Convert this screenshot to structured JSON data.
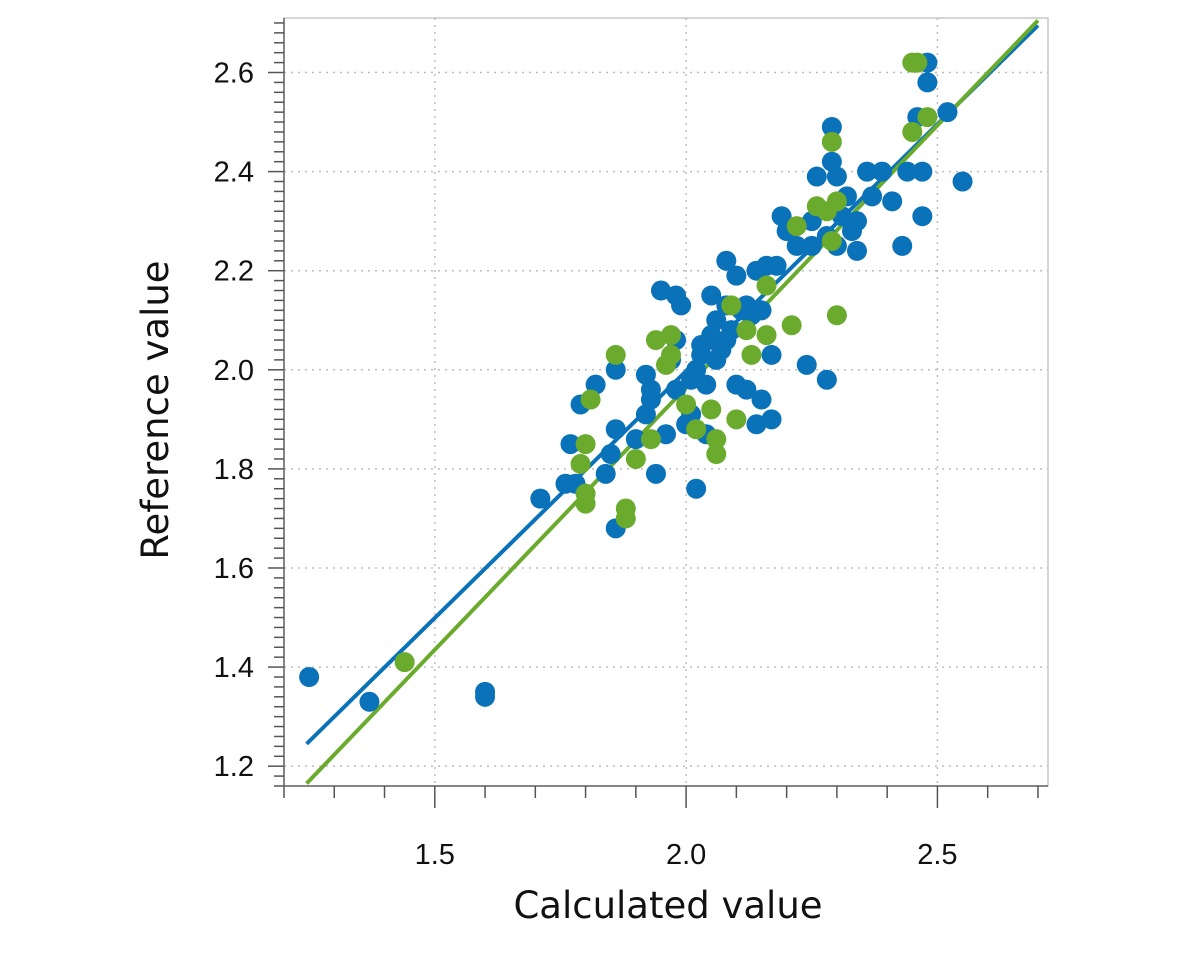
{
  "chart_data": {
    "type": "scatter",
    "title": "",
    "xlabel": "Calculated value",
    "ylabel": "Reference value",
    "xlim": [
      1.2,
      2.72
    ],
    "ylim": [
      1.16,
      2.71
    ],
    "xticks": [
      1.5,
      2.0,
      2.5
    ],
    "xtick_labels": [
      "1.5",
      "2.0",
      "2.5"
    ],
    "yticks": [
      1.2,
      1.4,
      1.6,
      1.8,
      2.0,
      2.2,
      2.4,
      2.6
    ],
    "ytick_labels": [
      "1.2",
      "1.4",
      "1.6",
      "1.8",
      "2.0",
      "2.2",
      "2.4",
      "2.6"
    ],
    "grid": true,
    "legend": "none",
    "series": [
      {
        "color": "#0a72b8",
        "points": [
          [
            1.25,
            1.38
          ],
          [
            1.37,
            1.33
          ],
          [
            1.6,
            1.35
          ],
          [
            1.6,
            1.34
          ],
          [
            1.71,
            1.74
          ],
          [
            1.76,
            1.77
          ],
          [
            1.78,
            1.77
          ],
          [
            1.77,
            1.85
          ],
          [
            1.79,
            1.93
          ],
          [
            1.82,
            1.97
          ],
          [
            1.84,
            1.79
          ],
          [
            1.86,
            1.68
          ],
          [
            1.85,
            1.83
          ],
          [
            1.86,
            1.88
          ],
          [
            1.86,
            2.0
          ],
          [
            1.9,
            1.86
          ],
          [
            1.92,
            1.99
          ],
          [
            1.93,
            1.94
          ],
          [
            1.93,
            1.96
          ],
          [
            1.92,
            1.91
          ],
          [
            1.94,
            1.79
          ],
          [
            1.95,
            2.16
          ],
          [
            1.96,
            1.87
          ],
          [
            1.97,
            2.02
          ],
          [
            1.98,
            1.96
          ],
          [
            1.98,
            2.06
          ],
          [
            1.99,
            2.13
          ],
          [
            1.98,
            2.15
          ],
          [
            2.0,
            1.89
          ],
          [
            2.01,
            1.91
          ],
          [
            2.01,
            1.98
          ],
          [
            2.02,
            1.76
          ],
          [
            2.02,
            2.0
          ],
          [
            2.03,
            2.03
          ],
          [
            2.03,
            2.05
          ],
          [
            2.04,
            1.97
          ],
          [
            2.04,
            1.87
          ],
          [
            2.05,
            2.07
          ],
          [
            2.05,
            2.15
          ],
          [
            2.06,
            2.02
          ],
          [
            2.06,
            2.1
          ],
          [
            2.07,
            2.04
          ],
          [
            2.08,
            2.06
          ],
          [
            2.08,
            2.13
          ],
          [
            2.08,
            2.22
          ],
          [
            2.09,
            2.08
          ],
          [
            2.1,
            1.97
          ],
          [
            2.1,
            2.19
          ],
          [
            2.11,
            2.12
          ],
          [
            2.12,
            1.96
          ],
          [
            2.12,
            2.13
          ],
          [
            2.13,
            2.11
          ],
          [
            2.14,
            1.89
          ],
          [
            2.14,
            2.2
          ],
          [
            2.15,
            1.94
          ],
          [
            2.15,
            2.12
          ],
          [
            2.16,
            2.21
          ],
          [
            2.17,
            2.03
          ],
          [
            2.17,
            1.9
          ],
          [
            2.18,
            2.21
          ],
          [
            2.19,
            2.31
          ],
          [
            2.2,
            2.28
          ],
          [
            2.22,
            2.25
          ],
          [
            2.24,
            2.01
          ],
          [
            2.25,
            2.25
          ],
          [
            2.25,
            2.3
          ],
          [
            2.26,
            2.39
          ],
          [
            2.28,
            1.98
          ],
          [
            2.28,
            2.27
          ],
          [
            2.29,
            2.42
          ],
          [
            2.29,
            2.49
          ],
          [
            2.3,
            2.25
          ],
          [
            2.3,
            2.39
          ],
          [
            2.31,
            2.31
          ],
          [
            2.32,
            2.35
          ],
          [
            2.33,
            2.28
          ],
          [
            2.34,
            2.24
          ],
          [
            2.34,
            2.3
          ],
          [
            2.36,
            2.4
          ],
          [
            2.37,
            2.35
          ],
          [
            2.39,
            2.4
          ],
          [
            2.41,
            2.34
          ],
          [
            2.43,
            2.25
          ],
          [
            2.44,
            2.4
          ],
          [
            2.46,
            2.51
          ],
          [
            2.47,
            2.31
          ],
          [
            2.47,
            2.4
          ],
          [
            2.48,
            2.58
          ],
          [
            2.48,
            2.62
          ],
          [
            2.52,
            2.52
          ],
          [
            2.55,
            2.38
          ]
        ],
        "trendline": [
          [
            1.245,
            1.245
          ],
          [
            2.7,
            2.695
          ]
        ]
      },
      {
        "color": "#6aab2d",
        "points": [
          [
            1.44,
            1.41
          ],
          [
            1.79,
            1.81
          ],
          [
            1.8,
            1.75
          ],
          [
            1.8,
            1.73
          ],
          [
            1.8,
            1.85
          ],
          [
            1.81,
            1.94
          ],
          [
            1.86,
            2.03
          ],
          [
            1.88,
            1.72
          ],
          [
            1.88,
            1.7
          ],
          [
            1.9,
            1.82
          ],
          [
            1.93,
            1.86
          ],
          [
            1.94,
            2.06
          ],
          [
            1.96,
            2.01
          ],
          [
            1.97,
            2.07
          ],
          [
            1.97,
            2.03
          ],
          [
            2.0,
            1.93
          ],
          [
            2.02,
            1.88
          ],
          [
            2.05,
            1.92
          ],
          [
            2.06,
            1.86
          ],
          [
            2.06,
            1.83
          ],
          [
            2.09,
            2.13
          ],
          [
            2.1,
            1.9
          ],
          [
            2.12,
            2.08
          ],
          [
            2.13,
            2.03
          ],
          [
            2.16,
            2.07
          ],
          [
            2.16,
            2.17
          ],
          [
            2.21,
            2.09
          ],
          [
            2.22,
            2.29
          ],
          [
            2.26,
            2.33
          ],
          [
            2.28,
            2.32
          ],
          [
            2.29,
            2.46
          ],
          [
            2.29,
            2.26
          ],
          [
            2.3,
            2.34
          ],
          [
            2.3,
            2.11
          ],
          [
            2.45,
            2.48
          ],
          [
            2.45,
            2.62
          ],
          [
            2.46,
            2.62
          ],
          [
            2.48,
            2.51
          ]
        ],
        "trendline": [
          [
            1.245,
            1.165
          ],
          [
            2.7,
            2.705
          ]
        ]
      }
    ]
  }
}
